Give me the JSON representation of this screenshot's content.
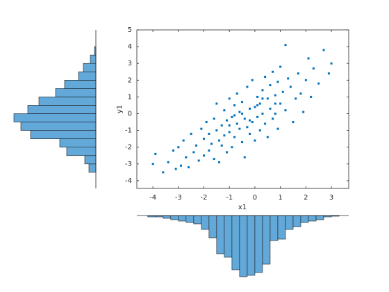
{
  "chart_data": {
    "type": "scatterhist",
    "xlabel": "x1",
    "ylabel": "y1",
    "color": "#0072bd",
    "hist_color": "#62a8d9",
    "xlim": [
      -4.63,
      3.68
    ],
    "ylim": [
      -4.46,
      5
    ],
    "xticks": [
      -4,
      -3,
      -2,
      -1,
      0,
      1,
      2,
      3
    ],
    "yticks": [
      -4,
      -3,
      -2,
      -1,
      0,
      1,
      2,
      3,
      4,
      5
    ],
    "x": [
      -4,
      -3.9,
      -3.6,
      -3.4,
      -3.2,
      -3.1,
      -3,
      -2.9,
      -2.8,
      -2.7,
      -2.6,
      -2.5,
      -2.4,
      -2.3,
      -2.2,
      -2.1,
      -2,
      -2,
      -1.9,
      -1.8,
      -1.8,
      -1.7,
      -1.6,
      -1.6,
      -1.5,
      -1.5,
      -1.4,
      -1.4,
      -1.3,
      -1.3,
      -1.2,
      -1.2,
      -1.1,
      -1.1,
      -1,
      -1,
      -0.9,
      -0.9,
      -0.8,
      -0.8,
      -0.7,
      -0.7,
      -0.6,
      -0.6,
      -0.5,
      -0.5,
      -0.4,
      -0.4,
      -0.3,
      -0.3,
      -0.2,
      -0.2,
      -0.1,
      -0.1,
      0,
      0,
      0.1,
      0.1,
      0.2,
      0.2,
      0.3,
      0.3,
      0.4,
      0.4,
      0.5,
      0.5,
      0.6,
      0.6,
      0.7,
      0.7,
      0.8,
      0.8,
      0.9,
      0.9,
      1,
      1,
      1.1,
      1.2,
      1.3,
      1.4,
      1.5,
      1.6,
      1.7,
      1.8,
      1.9,
      2,
      2.1,
      2.2,
      2.3,
      2.5,
      2.7,
      2.9,
      3,
      -0.5,
      0.3,
      -1,
      0.8,
      -0.2,
      0.1,
      -0.8,
      1.2
    ],
    "y": [
      -3,
      -2.4,
      -3.5,
      -2.9,
      -2.2,
      -3.3,
      -2,
      -3.1,
      -1.6,
      -2.6,
      -3.2,
      -1.2,
      -2.3,
      -1.9,
      -2.8,
      -0.9,
      -1.5,
      -2.5,
      -0.5,
      -1.2,
      -2.2,
      -1.8,
      -0.3,
      -2.7,
      -1,
      0.6,
      -1.6,
      -2.9,
      -0.7,
      -1.9,
      0.2,
      -1.3,
      -2.3,
      -0.4,
      0.9,
      -1.1,
      -0.2,
      -2,
      0.5,
      -1.4,
      -0.6,
      1.2,
      -0.9,
      0.1,
      -1.7,
      0.7,
      -0.3,
      -2.6,
      1.6,
      -0.8,
      0.3,
      -1.2,
      2,
      -0.5,
      0.4,
      -1.6,
      1,
      -0.2,
      0.6,
      -1,
      1.4,
      0,
      2.2,
      -0.6,
      0.9,
      -1.4,
      1.7,
      0.3,
      2.5,
      -0.3,
      1.1,
      0,
      1.9,
      -0.9,
      0.6,
      2.8,
      1.3,
      0.2,
      2.1,
      1.6,
      -0.5,
      0.9,
      2.4,
      1.2,
      0.1,
      2,
      3.3,
      1,
      2.7,
      1.8,
      3.8,
      2.4,
      3,
      0,
      0.9,
      -0.7,
      0.6,
      -0.4,
      0.5,
      -0.1,
      4.1
    ],
    "x_hist": {
      "bins": [
        -4.2,
        -3.9,
        -3.6,
        -3.3,
        -3,
        -2.7,
        -2.4,
        -2.1,
        -1.8,
        -1.5,
        -1.2,
        -0.9,
        -0.6,
        -0.3,
        0,
        0.3,
        0.6,
        0.9,
        1.2,
        1.5,
        1.8,
        2.1,
        2.4,
        2.7,
        3,
        3.3
      ],
      "counts": [
        2,
        2,
        4,
        6,
        8,
        10,
        12,
        20,
        32,
        55,
        60,
        78,
        88,
        86,
        82,
        70,
        36,
        34,
        20,
        16,
        10,
        8,
        6,
        2,
        1
      ]
    },
    "y_hist": {
      "bins": [
        -3.5,
        -3,
        -2.5,
        -2,
        -1.5,
        -1,
        -0.5,
        0,
        0.5,
        1,
        1.5,
        2,
        2.5,
        3,
        3.5,
        4
      ],
      "counts": [
        10,
        16,
        42,
        52,
        94,
        108,
        118,
        98,
        82,
        58,
        45,
        25,
        18,
        8,
        2
      ]
    }
  }
}
